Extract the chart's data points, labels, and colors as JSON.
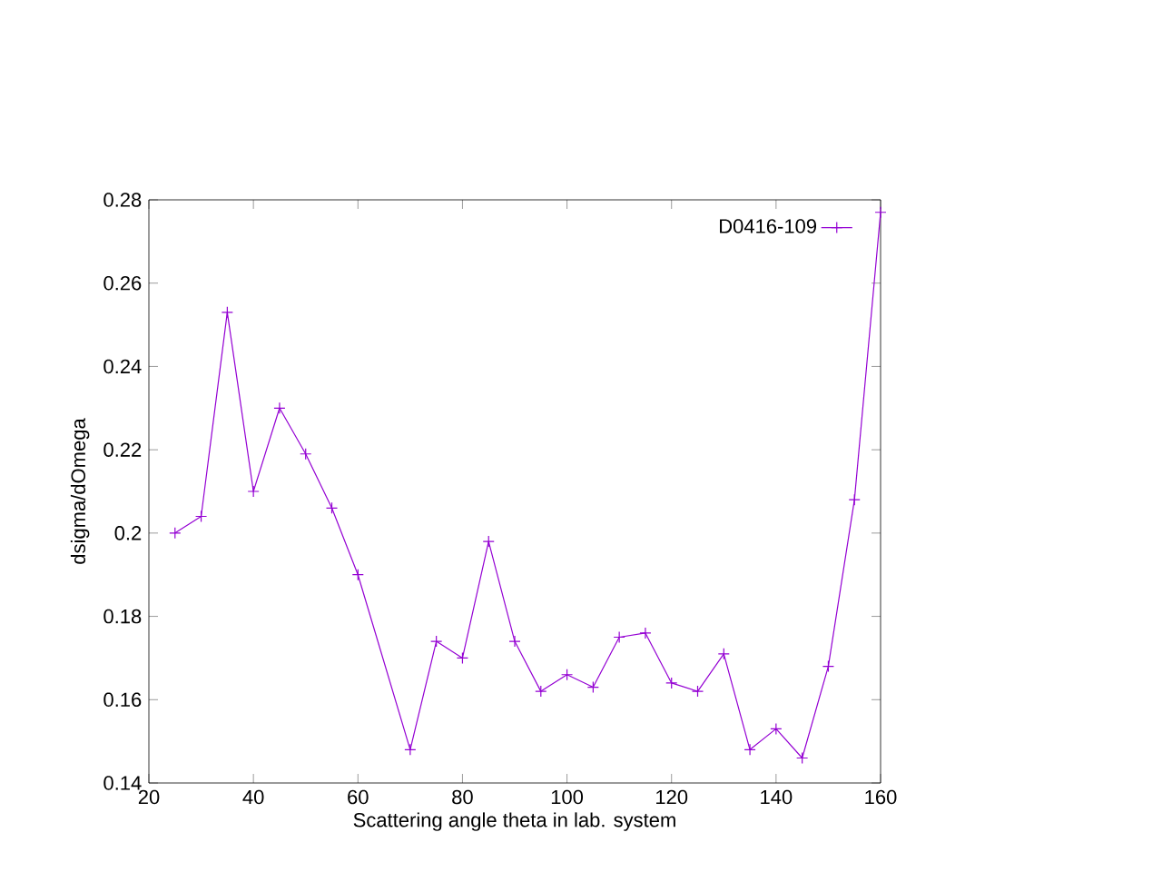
{
  "chart_data": {
    "type": "line",
    "xlabel": "Scattering angle theta in lab. system",
    "ylabel": "dsigma/dOmega",
    "x": [
      25,
      30,
      35,
      40,
      45,
      50,
      55,
      60,
      70,
      75,
      80,
      85,
      90,
      95,
      100,
      105,
      110,
      115,
      120,
      125,
      130,
      135,
      140,
      145,
      150,
      155,
      160
    ],
    "series": [
      {
        "name": "D0416-109",
        "color": "#9400d3",
        "values": [
          0.2,
          0.204,
          0.253,
          0.21,
          0.23,
          0.219,
          0.206,
          0.19,
          0.148,
          0.174,
          0.17,
          0.198,
          0.174,
          0.162,
          0.166,
          0.163,
          0.175,
          0.176,
          0.164,
          0.162,
          0.171,
          0.148,
          0.153,
          0.146,
          0.168,
          0.208,
          0.277
        ]
      }
    ],
    "xlim": [
      20,
      160
    ],
    "xticks": [
      20,
      40,
      60,
      80,
      100,
      120,
      140,
      160
    ],
    "ylim": [
      0.14,
      0.28
    ],
    "yticks": [
      0.14,
      0.16,
      0.18,
      0.2,
      0.22,
      0.24,
      0.26,
      0.28
    ],
    "legend": "top right",
    "marker": "cross",
    "line_style": "solid",
    "grid": false
  }
}
